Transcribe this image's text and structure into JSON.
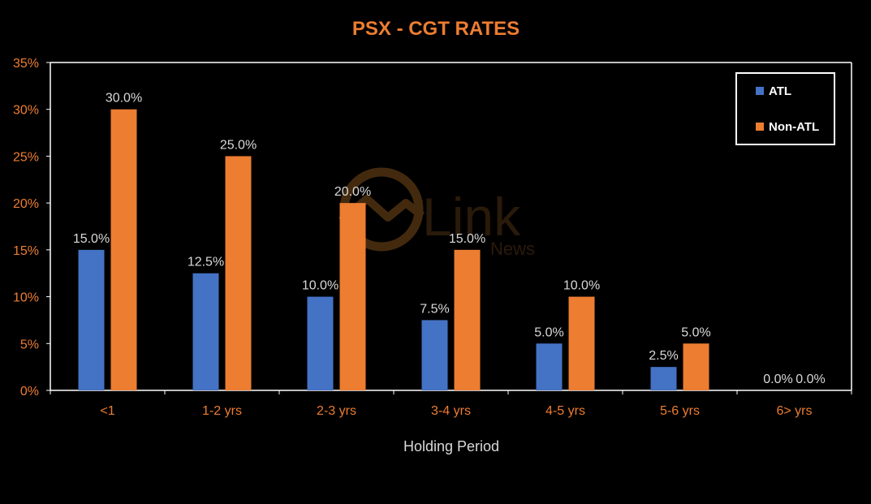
{
  "chart_data": {
    "type": "bar",
    "title": "PSX - CGT RATES",
    "xlabel": "Holding Period",
    "ylabel": "",
    "categories": [
      "<1",
      "1-2 yrs",
      "2-3 yrs",
      "3-4 yrs",
      "4-5 yrs",
      "5-6 yrs",
      "6> yrs"
    ],
    "series": [
      {
        "name": "ATL",
        "values": [
          15.0,
          12.5,
          10.0,
          7.5,
          5.0,
          2.5,
          0.0
        ],
        "labels": [
          "15.0%",
          "12.5%",
          "10.0%",
          "7.5%",
          "5.0%",
          "2.5%",
          "0.0%"
        ],
        "color": "#4472C4"
      },
      {
        "name": "Non-ATL",
        "values": [
          30.0,
          25.0,
          20.0,
          15.0,
          10.0,
          5.0,
          0.0
        ],
        "labels": [
          "30.0%",
          "25.0%",
          "20.0%",
          "15.0%",
          "10.0%",
          "5.0%",
          "0.0%"
        ],
        "color": "#ED7D31"
      }
    ],
    "y_ticks": [
      "0%",
      "5%",
      "10%",
      "15%",
      "20%",
      "25%",
      "30%",
      "35%"
    ],
    "y_tick_values": [
      0,
      5,
      10,
      15,
      20,
      25,
      30,
      35
    ],
    "ylim": [
      0,
      35
    ],
    "grid": false,
    "legend_position": "top-right"
  },
  "watermark": {
    "brand": "Link",
    "sub": "News"
  },
  "colors": {
    "background": "#000000",
    "title": "#ED7D31",
    "tick_label": "#ED7D31",
    "axis_title": "#D9D9D9",
    "data_label": "#D9D9D9",
    "axis_line": "#FFFFFF",
    "legend_text": "#FFFFFF",
    "legend_border": "#FFFFFF"
  }
}
